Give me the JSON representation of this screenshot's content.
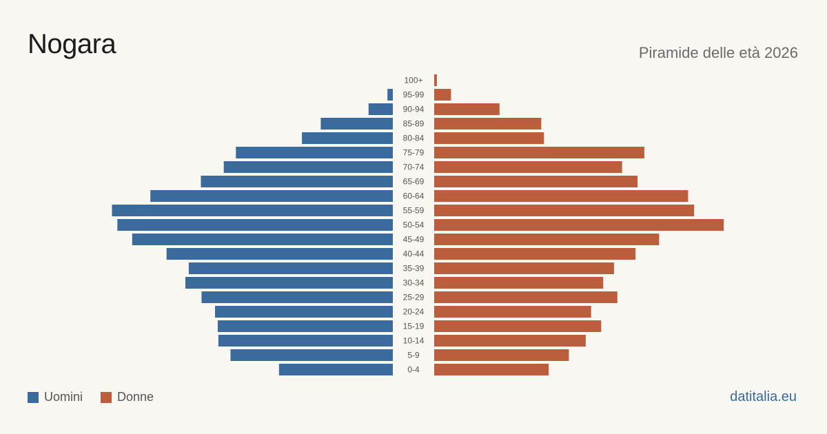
{
  "header": {
    "title": "Nogara",
    "subtitle": "Piramide delle età 2026"
  },
  "legend": {
    "men_label": "Uomini",
    "women_label": "Donne"
  },
  "brand": "datitalia.eu",
  "colors": {
    "men": "#3b6a9c",
    "women": "#bb5e3e",
    "background": "#f9f7f2"
  },
  "chart_data": {
    "type": "bar",
    "orientation": "horizontal-population-pyramid",
    "categories": [
      "100+",
      "95-99",
      "90-94",
      "85-89",
      "80-84",
      "75-79",
      "70-74",
      "65-69",
      "60-64",
      "55-59",
      "50-54",
      "45-49",
      "40-44",
      "35-39",
      "30-34",
      "25-29",
      "20-24",
      "15-19",
      "10-14",
      "5-9",
      "0-4"
    ],
    "series": [
      {
        "name": "Uomini",
        "color": "#3b6a9c",
        "values": [
          0,
          8,
          36,
          107,
          135,
          233,
          251,
          285,
          360,
          417,
          409,
          387,
          336,
          303,
          308,
          284,
          264,
          260,
          259,
          241,
          169
        ]
      },
      {
        "name": "Donne",
        "color": "#bb5e3e",
        "values": [
          4,
          25,
          97,
          159,
          163,
          312,
          279,
          302,
          377,
          386,
          430,
          334,
          299,
          267,
          251,
          272,
          233,
          248,
          225,
          200,
          170
        ]
      }
    ],
    "xlim": [
      0,
      440
    ],
    "grid": false,
    "legend_position": "bottom-left"
  }
}
